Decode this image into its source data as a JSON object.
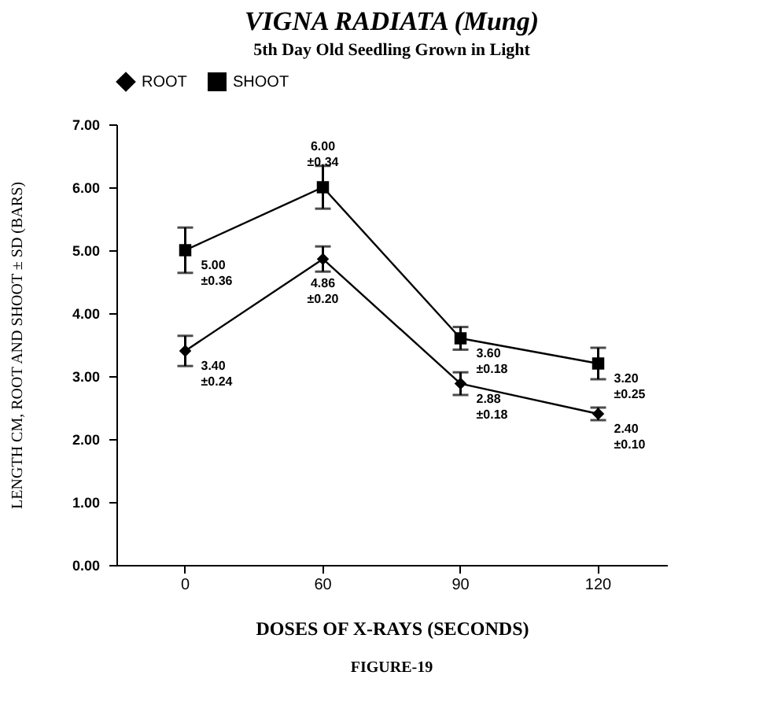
{
  "chart_data": {
    "type": "line",
    "title": "VIGNA RADIATA (Mung)",
    "subtitle": "5th Day Old Seedling Grown in Light",
    "xlabel": "DOSES OF X-RAYS (SECONDS)",
    "ylabel": "LENGTH CM, ROOT AND SHOOT ± SD (BARS)",
    "annotations": [
      "FIGURE-19"
    ],
    "categories": [
      "0",
      "60",
      "90",
      "120"
    ],
    "ylim": [
      0,
      7
    ],
    "yticks": [
      {
        "value": 0,
        "label": "0.00"
      },
      {
        "value": 1,
        "label": "1.00"
      },
      {
        "value": 2,
        "label": "2.00"
      },
      {
        "value": 3,
        "label": "3.00"
      },
      {
        "value": 4,
        "label": "4.00"
      },
      {
        "value": 5,
        "label": "5.00"
      },
      {
        "value": 6,
        "label": "6.00"
      },
      {
        "value": 7,
        "label": "7.00"
      }
    ],
    "grid": false,
    "legend": "top",
    "line_style": "solid",
    "series": [
      {
        "name": "ROOT",
        "color": "#000000",
        "marker": "diamond",
        "values": [
          3.4,
          4.86,
          2.88,
          2.4
        ],
        "errors": [
          0.24,
          0.2,
          0.18,
          0.1
        ],
        "value_labels": [
          "3.40\n±0.24",
          "4.86\n±0.20",
          "2.88\n±0.18",
          "2.40\n±0.10"
        ]
      },
      {
        "name": "SHOOT",
        "color": "#000000",
        "marker": "square",
        "values": [
          5.0,
          6.0,
          3.6,
          3.2
        ],
        "errors": [
          0.36,
          0.34,
          0.18,
          0.25
        ],
        "value_labels": [
          "5.00\n±0.36",
          "6.00\n±0.34",
          "3.60\n±0.18",
          "3.20\n±0.25"
        ]
      }
    ]
  }
}
